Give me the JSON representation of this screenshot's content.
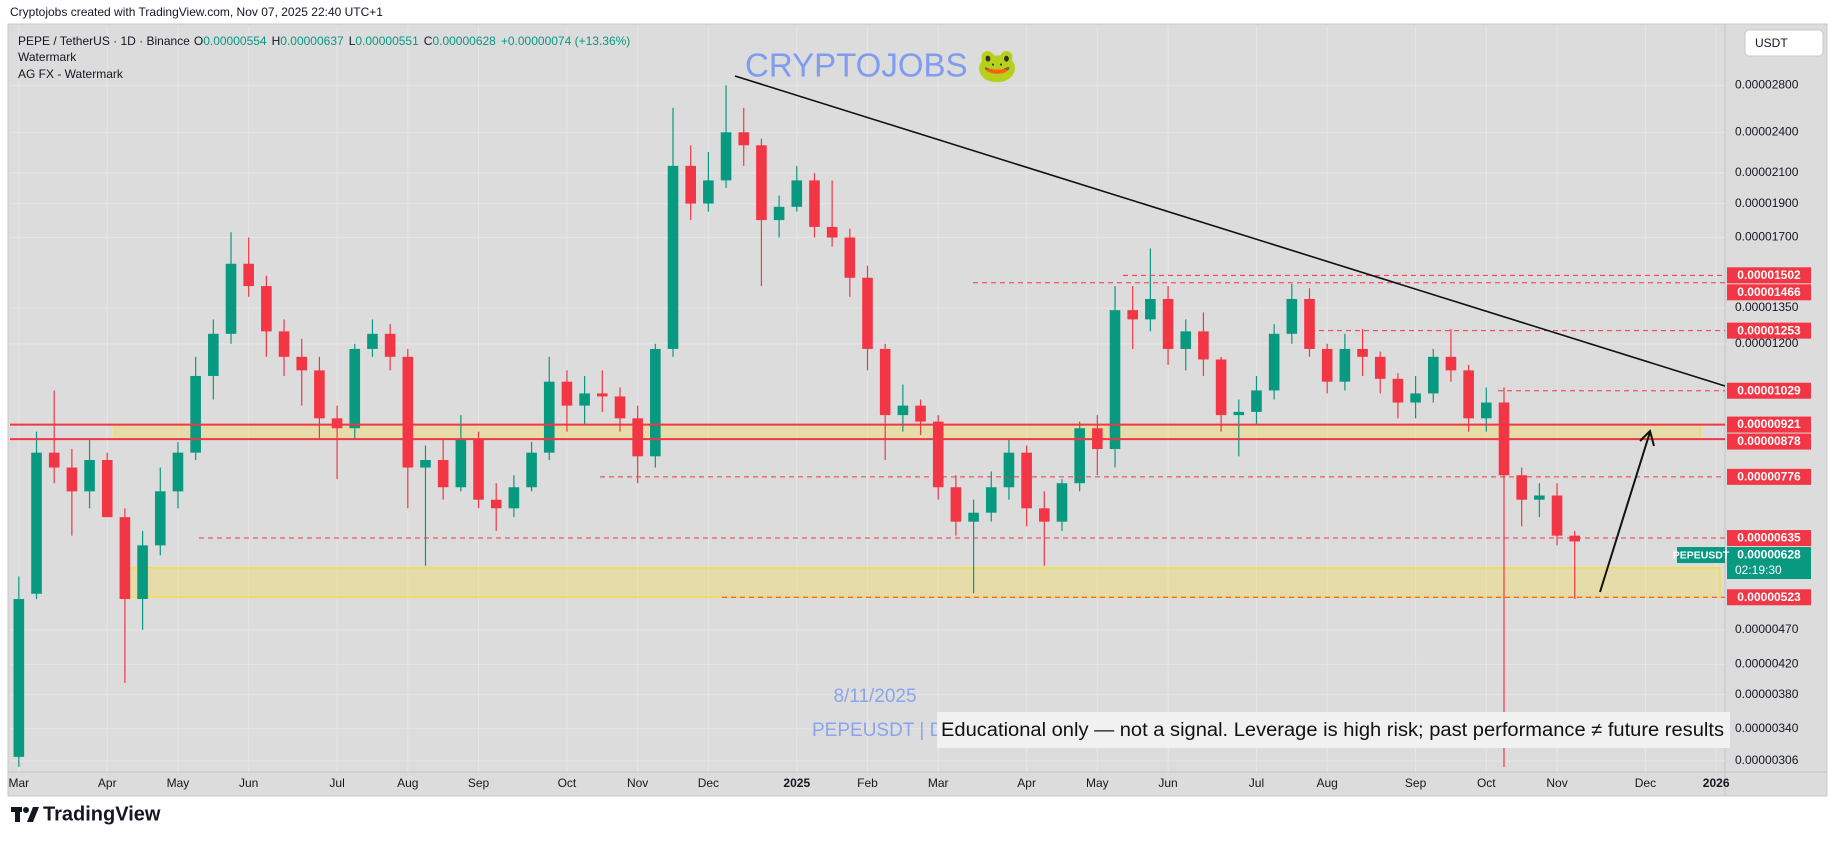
{
  "header": {
    "caption": "Cryptojobs created with TradingView.com, Nov 07, 2025 22:40 UTC+1"
  },
  "chart_data": {
    "type": "candlestick",
    "title": "PEPE / TetherUS · 1D · Binance",
    "ohlc_legend": [
      {
        "key": "O",
        "value": "0.00000554"
      },
      {
        "key": "H",
        "value": "0.00000637"
      },
      {
        "key": "L",
        "value": "0.00000551"
      },
      {
        "key": "C",
        "value": "0.00000628"
      }
    ],
    "change": "+0.00000074 (+13.36%)",
    "indicators": [
      "Watermark",
      "AG FX - Watermark"
    ],
    "watermark": "CRYPTOJOBS 🐸",
    "annotations": {
      "date": "8/11/2025",
      "symbol_line": "PEPEUSDT | D",
      "disclaimer": "Educational only — not a signal. Leverage is high risk; past performance ≠ future results"
    },
    "currency": "USDT",
    "categories": [
      "Mar",
      null,
      null,
      null,
      null,
      "Apr",
      null,
      null,
      null,
      "May",
      null,
      null,
      null,
      "Jun",
      null,
      null,
      null,
      null,
      "Jul",
      null,
      null,
      null,
      "Aug",
      null,
      null,
      null,
      "Sep",
      null,
      null,
      null,
      null,
      "Oct",
      null,
      null,
      null,
      "Nov",
      null,
      null,
      null,
      "Dec",
      null,
      null,
      null,
      null,
      "2025",
      null,
      null,
      null,
      "Feb",
      null,
      null,
      null,
      "Mar",
      null,
      null,
      null,
      null,
      "Apr",
      null,
      null,
      null,
      "May",
      null,
      null,
      null,
      "Jun",
      null,
      null,
      null,
      null,
      "Jul",
      null,
      null,
      null,
      "Aug",
      null,
      null,
      null,
      null,
      "Sep",
      null,
      null,
      null,
      "Oct",
      null,
      null,
      null,
      "Nov",
      null,
      null,
      null,
      null,
      "Dec",
      null,
      null,
      null,
      "2026"
    ],
    "series": [
      {
        "name": "PEPEUSDT",
        "up_color": "#089981",
        "down_color": "#f23645",
        "open": [
          3.1e-06,
          5.29e-06,
          8.4e-06,
          8e-06,
          7.4e-06,
          8.2e-06,
          6.8e-06,
          5.2e-06,
          6.2e-06,
          7.4e-06,
          8.4e-06,
          1.08e-05,
          1.24e-05,
          1.56e-05,
          1.45e-05,
          1.25e-05,
          1.15e-05,
          1.1e-05,
          9.4e-06,
          9.1e-06,
          1.18e-05,
          1.24e-05,
          1.15e-05,
          8e-06,
          8.2e-06,
          7.5e-06,
          8.8e-06,
          7.2e-06,
          7e-06,
          7.5e-06,
          8.4e-06,
          1.06e-05,
          9.8e-06,
          1.02e-05,
          1.01e-05,
          9.4e-06,
          8.3e-06,
          1.18e-05,
          2.15e-05,
          1.9e-05,
          2.05e-05,
          2.4e-05,
          2.3e-05,
          1.8e-05,
          1.88e-05,
          2.05e-05,
          1.76e-05,
          1.7e-05,
          1.49e-05,
          1.18e-05,
          9.5e-06,
          9.8e-06,
          9.3e-06,
          7.5e-06,
          6.7e-06,
          6.9e-06,
          7.5e-06,
          8.4e-06,
          7e-06,
          6.7e-06,
          7.6e-06,
          9.1e-06,
          8.5e-06,
          1.34e-05,
          1.3e-05,
          1.39e-05,
          1.18e-05,
          1.25e-05,
          1.14e-05,
          9.5e-06,
          9.6e-06,
          1.03e-05,
          1.24e-05,
          1.39e-05,
          1.18e-05,
          1.06e-05,
          1.18e-05,
          1.15e-05,
          1.07e-05,
          9.9e-06,
          1.02e-05,
          1.15e-05,
          1.1e-05,
          9.4e-06,
          9.9e-06,
          7.8e-06,
          7.2e-06,
          7.3e-06,
          6.4e-06,
          null,
          null,
          null,
          null,
          null,
          null,
          null,
          null
        ],
        "high": [
          5.6e-06,
          9e-06,
          1.03e-05,
          8.5e-06,
          8.8e-06,
          8.4e-06,
          7e-06,
          6.5e-06,
          8e-06,
          8.7e-06,
          1.15e-05,
          1.3e-05,
          1.73e-05,
          1.7e-05,
          1.5e-05,
          1.3e-05,
          1.22e-05,
          1.15e-05,
          9.8e-06,
          1.2e-05,
          1.3e-05,
          1.28e-05,
          1.18e-05,
          8.6e-06,
          8.8e-06,
          9.5e-06,
          9e-06,
          7.6e-06,
          7.8e-06,
          8.7e-06,
          1.15e-05,
          1.1e-05,
          1.08e-05,
          1.1e-05,
          1.04e-05,
          9.8e-06,
          1.2e-05,
          2.6e-05,
          2.3e-05,
          2.25e-05,
          2.8e-05,
          2.6e-05,
          2.35e-05,
          1.95e-05,
          2.15e-05,
          2.1e-05,
          2.05e-05,
          1.75e-05,
          1.55e-05,
          1.2e-05,
          1.05e-05,
          1e-05,
          9.5e-06,
          7.8e-06,
          7.2e-06,
          7.9e-06,
          8.8e-06,
          8.6e-06,
          7.4e-06,
          7.7e-06,
          9.3e-06,
          9.5e-06,
          1.45e-05,
          1.45e-05,
          1.64e-05,
          1.45e-05,
          1.3e-05,
          1.33e-05,
          1.15e-05,
          1e-05,
          1.08e-05,
          1.28e-05,
          1.46e-05,
          1.44e-05,
          1.2e-05,
          1.24e-05,
          1.26e-05,
          1.17e-05,
          1.09e-05,
          1.08e-05,
          1.18e-05,
          1.26e-05,
          1.12e-05,
          1.04e-05,
          1.04e-05,
          8e-06,
          7.6e-06,
          7.6e-06,
          6.5e-06,
          null,
          null,
          null,
          null,
          null,
          null,
          null,
          null
        ],
        "low": [
          3e-06,
          5.2e-06,
          7.6e-06,
          6.4e-06,
          7e-06,
          6.8e-06,
          3.95e-06,
          4.7e-06,
          6e-06,
          7e-06,
          8.2e-06,
          1e-05,
          1.2e-05,
          1.4e-05,
          1.15e-05,
          1.08e-05,
          9.8e-06,
          8.8e-06,
          7.7e-06,
          8.8e-06,
          1.15e-05,
          1.1e-05,
          7e-06,
          5.8e-06,
          7.2e-06,
          7.4e-06,
          7e-06,
          6.5e-06,
          6.8e-06,
          7.4e-06,
          8.2e-06,
          9e-06,
          9.2e-06,
          9.6e-06,
          9e-06,
          7.6e-06,
          8e-06,
          1.15e-05,
          1.8e-05,
          1.85e-05,
          2e-05,
          2.15e-05,
          1.45e-05,
          1.7e-05,
          1.85e-05,
          1.7e-05,
          1.65e-05,
          1.4e-05,
          1.1e-05,
          8.2e-06,
          9e-06,
          8.9e-06,
          7.2e-06,
          6.4e-06,
          5.3e-06,
          6.7e-06,
          7.2e-06,
          6.6e-06,
          5.8e-06,
          6.5e-06,
          7.4e-06,
          7.8e-06,
          8e-06,
          1.18e-05,
          1.25e-05,
          1.12e-05,
          1.1e-05,
          1.08e-05,
          9e-06,
          8.3e-06,
          9.2e-06,
          1e-05,
          1.2e-05,
          1.15e-05,
          1.02e-05,
          1.03e-05,
          1.08e-05,
          1.02e-05,
          9.4e-06,
          9.4e-06,
          9.9e-06,
          1.06e-05,
          9e-06,
          9e-06,
          3e-06,
          6.6e-06,
          6.8e-06,
          6.2e-06,
          5.2e-06,
          null,
          null,
          null,
          null,
          null,
          null,
          null,
          null
        ],
        "close": [
          5.2e-06,
          8.4e-06,
          8e-06,
          7.4e-06,
          8.2e-06,
          6.8e-06,
          5.2e-06,
          6.2e-06,
          7.4e-06,
          8.4e-06,
          1.08e-05,
          1.24e-05,
          1.56e-05,
          1.45e-05,
          1.25e-05,
          1.15e-05,
          1.1e-05,
          9.4e-06,
          9.1e-06,
          1.18e-05,
          1.24e-05,
          1.15e-05,
          8e-06,
          8.2e-06,
          7.5e-06,
          8.8e-06,
          7.2e-06,
          7e-06,
          7.5e-06,
          8.4e-06,
          1.06e-05,
          9.8e-06,
          1.02e-05,
          1.01e-05,
          9.4e-06,
          8.3e-06,
          1.18e-05,
          2.15e-05,
          1.9e-05,
          2.05e-05,
          2.4e-05,
          2.3e-05,
          1.8e-05,
          1.88e-05,
          2.05e-05,
          1.76e-05,
          1.7e-05,
          1.49e-05,
          1.18e-05,
          9.5e-06,
          9.8e-06,
          9.3e-06,
          7.5e-06,
          6.7e-06,
          6.9e-06,
          7.5e-06,
          8.4e-06,
          7e-06,
          6.7e-06,
          7.6e-06,
          9.1e-06,
          8.5e-06,
          1.34e-05,
          1.3e-05,
          1.39e-05,
          1.18e-05,
          1.25e-05,
          1.14e-05,
          9.5e-06,
          9.6e-06,
          1.03e-05,
          1.24e-05,
          1.39e-05,
          1.18e-05,
          1.06e-05,
          1.18e-05,
          1.15e-05,
          1.07e-05,
          9.9e-06,
          1.02e-05,
          1.15e-05,
          1.1e-05,
          9.4e-06,
          9.9e-06,
          7.8e-06,
          7.2e-06,
          7.3e-06,
          6.4e-06,
          6.28e-06,
          null,
          null,
          null,
          null,
          null,
          null,
          null,
          null
        ]
      }
    ],
    "last_price": {
      "value": 6.28e-06,
      "label": "0.00000628",
      "countdown": "02:19:30",
      "color": "#089981"
    },
    "y_log": true,
    "ylim": [
      2.95e-06,
      3.4e-05
    ],
    "yticks": [
      {
        "value": 2.8e-05,
        "label": "0.00002800"
      },
      {
        "value": 2.4e-05,
        "label": "0.00002400"
      },
      {
        "value": 2.1e-05,
        "label": "0.00002100"
      },
      {
        "value": 1.9e-05,
        "label": "0.00001900"
      },
      {
        "value": 1.7e-05,
        "label": "0.00001700"
      },
      {
        "value": 1.35e-05,
        "label": "0.00001350"
      },
      {
        "value": 1.2e-05,
        "label": "0.00001200"
      },
      {
        "value": 4.7e-06,
        "label": "0.00000470"
      },
      {
        "value": 4.2e-06,
        "label": "0.00000420"
      },
      {
        "value": 3.8e-06,
        "label": "0.00000380"
      },
      {
        "value": 3.4e-06,
        "label": "0.00000340"
      },
      {
        "value": 3.06e-06,
        "label": "0.00000306"
      }
    ],
    "price_levels": [
      {
        "value": 1.502e-05,
        "label": "0.00001502",
        "style": "dashed"
      },
      {
        "value": 1.466e-05,
        "label": "0.00001466",
        "style": "dashed"
      },
      {
        "value": 1.253e-05,
        "label": "0.00001253",
        "style": "dashed"
      },
      {
        "value": 1.029e-05,
        "label": "0.00001029",
        "style": "dashed"
      },
      {
        "value": 9.21e-06,
        "label": "0.00000921",
        "style": "solid"
      },
      {
        "value": 8.78e-06,
        "label": "0.00000878",
        "style": "solid"
      },
      {
        "value": 7.76e-06,
        "label": "0.00000776",
        "style": "dashed"
      },
      {
        "value": 6.35e-06,
        "label": "0.00000635",
        "style": "dashed"
      },
      {
        "value": 5.23e-06,
        "label": "0.00000523",
        "style": "dashed"
      }
    ],
    "level_color": "#f23645",
    "zones": [
      {
        "low": 8.78e-06,
        "high": 9.21e-06
      },
      {
        "low": 5.23e-06,
        "high": 5.76e-06
      }
    ],
    "zone_color": "#f5dc4a",
    "grid": true
  },
  "footer": {
    "brand": "TradingView"
  }
}
